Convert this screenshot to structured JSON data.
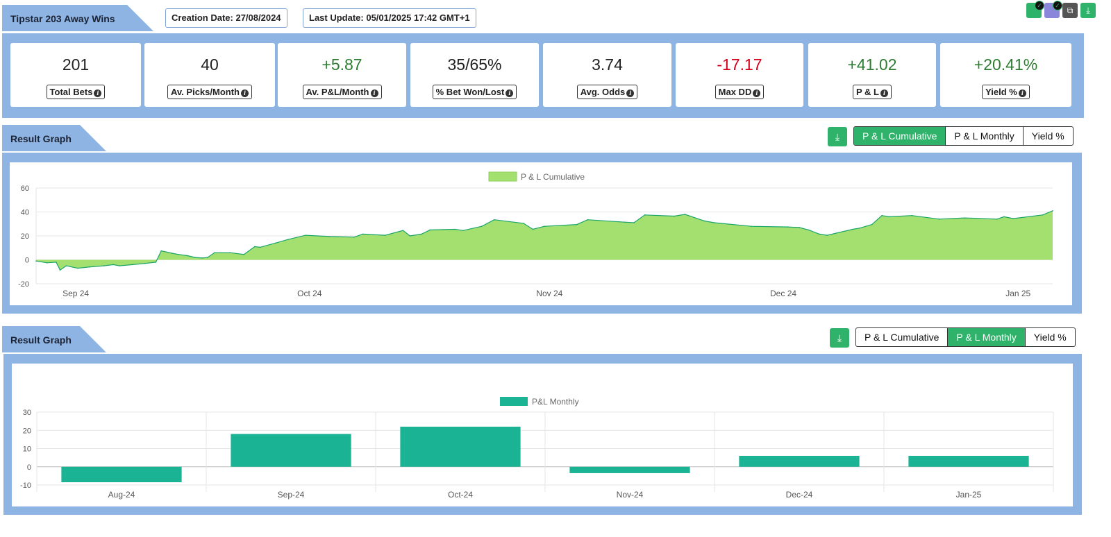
{
  "header": {
    "title": "Tipstar 203 Away Wins",
    "creation_date": "Creation Date: 27/08/2024",
    "last_update": "Last Update: 05/01/2025 17:42 GMT+1"
  },
  "top_icons": [
    "check-badge-icon",
    "check-badge-icon",
    "copy-icon",
    "download-icon"
  ],
  "stats": [
    {
      "value": "201",
      "label": "Total Bets",
      "tone": "neutral"
    },
    {
      "value": "40",
      "label": "Av. Picks/Month",
      "tone": "neutral"
    },
    {
      "value": "+5.87",
      "label": "Av. P&L/Month",
      "tone": "pos"
    },
    {
      "value": "35/65%",
      "label": "% Bet Won/Lost",
      "tone": "neutral"
    },
    {
      "value": "3.74",
      "label": "Avg. Odds",
      "tone": "neutral"
    },
    {
      "value": "-17.17",
      "label": "Max DD",
      "tone": "neg"
    },
    {
      "value": "+41.02",
      "label": "P & L",
      "tone": "pos"
    },
    {
      "value": "+20.41%",
      "label": "Yield %",
      "tone": "pos"
    }
  ],
  "section1": {
    "title": "Result Graph",
    "tabs": [
      "P & L Cumulative",
      "P & L Monthly",
      "Yield %"
    ],
    "active_tab": 0
  },
  "section2": {
    "title": "Result Graph",
    "tabs": [
      "P & L Cumulative",
      "P & L Monthly",
      "Yield %"
    ],
    "active_tab": 1
  },
  "colors": {
    "accent": "#2fb36b",
    "band": "#8eb4e3",
    "area_fill": "#a3e06f",
    "area_line": "#1aa36b",
    "bar_fill": "#1ab394",
    "positive": "#2e7d32",
    "negative": "#d0021b"
  },
  "chart_data": [
    {
      "type": "area",
      "legend": "P & L Cumulative",
      "ylim": [
        -20,
        60
      ],
      "yticks": [
        60,
        40,
        20,
        0,
        -20
      ],
      "x_tick_labels": [
        "Sep 24",
        "Oct 24",
        "Nov 24",
        "Dec 24",
        "Jan 25"
      ],
      "x_tick_positions": [
        0.039,
        0.269,
        0.505,
        0.735,
        0.966
      ],
      "points": [
        [
          0.0,
          -1
        ],
        [
          0.014,
          -2.5
        ],
        [
          0.026,
          -2
        ],
        [
          0.031,
          -8.5
        ],
        [
          0.039,
          -5
        ],
        [
          0.054,
          -7
        ],
        [
          0.069,
          -6
        ],
        [
          0.088,
          -5
        ],
        [
          0.1,
          -4
        ],
        [
          0.108,
          -5
        ],
        [
          0.125,
          -4
        ],
        [
          0.141,
          -3
        ],
        [
          0.155,
          -2
        ],
        [
          0.162,
          7.5
        ],
        [
          0.176,
          5.5
        ],
        [
          0.184,
          4.5
        ],
        [
          0.196,
          3.5
        ],
        [
          0.206,
          2
        ],
        [
          0.215,
          1.5
        ],
        [
          0.222,
          2
        ],
        [
          0.231,
          6
        ],
        [
          0.251,
          6
        ],
        [
          0.269,
          4.5
        ],
        [
          0.283,
          11
        ],
        [
          0.29,
          10.5
        ],
        [
          0.31,
          14
        ],
        [
          0.326,
          17
        ],
        [
          0.349,
          20.5
        ],
        [
          0.38,
          19.5
        ],
        [
          0.412,
          19
        ],
        [
          0.423,
          21.5
        ],
        [
          0.452,
          20.5
        ],
        [
          0.475,
          24.5
        ],
        [
          0.484,
          20
        ],
        [
          0.499,
          21.5
        ],
        [
          0.51,
          25
        ],
        [
          0.542,
          25.5
        ],
        [
          0.553,
          24.5
        ],
        [
          0.577,
          28
        ],
        [
          0.593,
          33.5
        ],
        [
          0.631,
          30.5
        ],
        [
          0.643,
          25.5
        ],
        [
          0.658,
          28
        ],
        [
          0.7,
          29.5
        ],
        [
          0.714,
          33.5
        ],
        [
          0.762,
          31.5
        ],
        [
          0.774,
          31
        ],
        [
          0.788,
          37.5
        ],
        [
          0.826,
          36.5
        ],
        [
          0.84,
          38
        ],
        [
          0.865,
          32.5
        ],
        [
          0.878,
          31
        ],
        [
          0.926,
          28
        ],
        [
          0.973,
          27.5
        ],
        [
          0.988,
          27
        ],
        [
          1.0,
          25
        ],
        [
          1.014,
          21.5
        ],
        [
          1.024,
          20.5
        ],
        [
          1.057,
          25.5
        ],
        [
          1.066,
          26.5
        ],
        [
          1.082,
          29.5
        ],
        [
          1.095,
          37
        ],
        [
          1.104,
          36
        ],
        [
          1.134,
          37
        ],
        [
          1.169,
          34
        ],
        [
          1.202,
          35
        ],
        [
          1.244,
          34
        ],
        [
          1.253,
          36
        ],
        [
          1.265,
          34.5
        ],
        [
          1.303,
          37.5
        ],
        [
          1.316,
          41
        ]
      ]
    },
    {
      "type": "bar",
      "legend": "P&L Monthly",
      "ylim": [
        -10,
        30
      ],
      "yticks": [
        30,
        20,
        10,
        0,
        -10
      ],
      "categories": [
        "Aug-24",
        "Sep-24",
        "Oct-24",
        "Nov-24",
        "Dec-24",
        "Jan-25"
      ],
      "values": [
        -8.5,
        18,
        22,
        -3.5,
        6,
        6
      ]
    }
  ]
}
